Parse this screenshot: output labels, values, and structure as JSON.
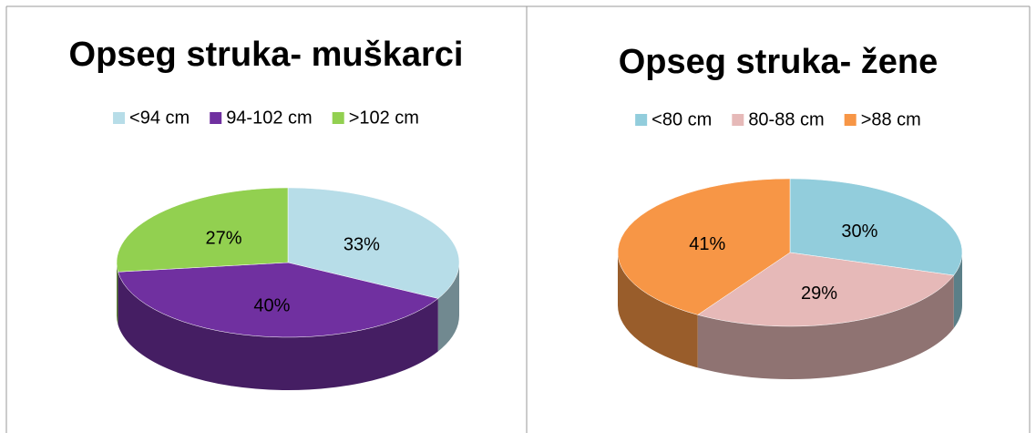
{
  "chart_data": [
    {
      "type": "pie",
      "title": "Opseg struka- muškarci",
      "categories": [
        "<94 cm",
        "94-102 cm",
        ">102 cm"
      ],
      "values": [
        33,
        40,
        27
      ],
      "value_labels": [
        "33%",
        "40%",
        "27%"
      ],
      "colors": [
        "#b7dde8",
        "#7030a0",
        "#92d050"
      ],
      "legend": "top"
    },
    {
      "type": "pie",
      "title": "Opseg struka- žene",
      "categories": [
        "<80 cm",
        "80-88 cm",
        ">88 cm"
      ],
      "values": [
        30,
        29,
        41
      ],
      "value_labels": [
        "30%",
        "29%",
        "41%"
      ],
      "colors": [
        "#92cddc",
        "#e6b9b8",
        "#f79646"
      ],
      "legend": "top"
    }
  ]
}
